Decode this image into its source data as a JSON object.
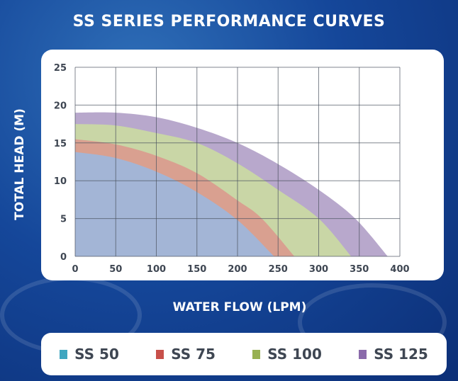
{
  "chart_data": {
    "type": "area",
    "title": "SS SERIES PERFORMANCE CURVES",
    "xlabel": "WATER FLOW (LPM)",
    "ylabel": "TOTAL HEAD (M)",
    "xlim": [
      0,
      400
    ],
    "ylim": [
      0,
      25
    ],
    "xticks": [
      "0",
      "50",
      "100",
      "150",
      "200",
      "250",
      "300",
      "350",
      "400"
    ],
    "yticks": [
      "0",
      "5",
      "10",
      "15",
      "20",
      "25"
    ],
    "grid": true,
    "legend_position": "bottom",
    "series": [
      {
        "name": "SS 50",
        "color": "#3fa6c0",
        "fill": "#a3b5d6",
        "x": [
          0,
          50,
          100,
          150,
          200,
          245
        ],
        "y": [
          13.8,
          13,
          11.2,
          8.5,
          4.8,
          0
        ]
      },
      {
        "name": "SS 75",
        "color": "#c8504a",
        "fill": "#d9a090",
        "x": [
          0,
          50,
          100,
          150,
          200,
          230,
          270
        ],
        "y": [
          15.5,
          14.8,
          13.3,
          11,
          7.4,
          5,
          0
        ]
      },
      {
        "name": "SS 100",
        "color": "#98b152",
        "fill": "#c9d6a6",
        "x": [
          0,
          50,
          100,
          150,
          200,
          250,
          300,
          340
        ],
        "y": [
          17.5,
          17.3,
          16.3,
          15,
          12.3,
          8.8,
          5,
          0
        ]
      },
      {
        "name": "SS 125",
        "color": "#8a6aaa",
        "fill": "#b8a8cc",
        "x": [
          0,
          50,
          100,
          150,
          200,
          250,
          300,
          345,
          385
        ],
        "y": [
          19,
          19,
          18.4,
          17,
          15,
          12.2,
          8.8,
          5,
          0
        ]
      }
    ]
  }
}
